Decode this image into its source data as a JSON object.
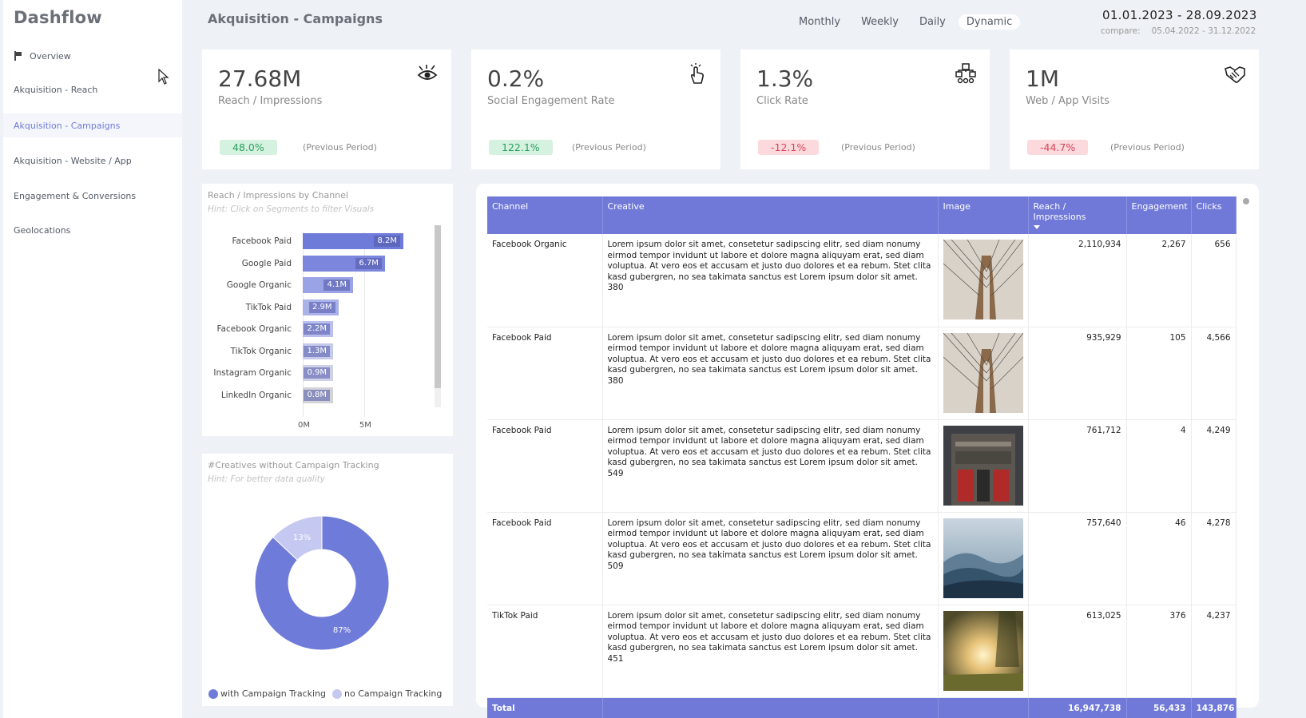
{
  "sidebar": {
    "brand": "Dashflow",
    "items": [
      {
        "label": "Overview",
        "icon": "flag-icon"
      },
      {
        "label": "Akquisition - Reach"
      },
      {
        "label": "Akquisition - Campaigns",
        "active": true
      },
      {
        "label": "Akquisition - Website / App"
      },
      {
        "label": "Engagement & Conversions"
      },
      {
        "label": "Geolocations"
      }
    ]
  },
  "header": {
    "title": "Akquisition - Campaigns",
    "tabs": [
      "Monthly",
      "Weekly",
      "Daily",
      "Dynamic"
    ],
    "active_tab": "Dynamic",
    "date_range": "01.01.2023 - 28.09.2023",
    "compare_label": "compare:",
    "compare_range": "05.04.2022 - 31.12.2022"
  },
  "kpis": [
    {
      "value": "27.68M",
      "label": "Reach / Impressions",
      "change": "48.0%",
      "trend": "positive",
      "prev": "(Previous Period)",
      "icon": "eye-icon"
    },
    {
      "value": "0.2%",
      "label": "Social Engagement Rate",
      "change": "122.1%",
      "trend": "positive",
      "prev": "(Previous Period)",
      "icon": "hand-click-icon"
    },
    {
      "value": "1.3%",
      "label": "Click Rate",
      "change": "-12.1%",
      "trend": "negative",
      "prev": "(Previous Period)",
      "icon": "network-icon"
    },
    {
      "value": "1M",
      "label": "Web / App Visits",
      "change": "-44.7%",
      "trend": "negative",
      "prev": "(Previous Period)",
      "icon": "handshake-icon"
    }
  ],
  "bar_panel": {
    "title": "Reach / Impressions by Channel",
    "hint": "Hint: Click on Segments to filter Visuals"
  },
  "donut_panel": {
    "title": "#Creatives without Campaign Tracking",
    "hint": "Hint: For better data quality"
  },
  "chart_data": [
    {
      "type": "bar",
      "orientation": "horizontal",
      "categories": [
        "Facebook Paid",
        "Google Paid",
        "Google Organic",
        "TikTok Paid",
        "Facebook Organic",
        "TikTok Organic",
        "Instagram Organic",
        "LinkedIn Organic"
      ],
      "values": [
        8.2,
        6.7,
        4.1,
        2.9,
        2.2,
        1.3,
        0.9,
        0.8
      ],
      "data_labels": [
        "8.2M",
        "6.7M",
        "4.1M",
        "2.9M",
        "2.2M",
        "1.3M",
        "0.9M",
        "0.8M"
      ],
      "x_ticks": [
        "0M",
        "5M"
      ],
      "xlim": [
        0,
        8.2
      ],
      "colors": [
        "#6f7bd8",
        "#7b86dc",
        "#9aa3e6",
        "#aab2ea",
        "#b9bfee",
        "#c5c9ea",
        "#cfd1e8",
        "#d3d3d8"
      ]
    },
    {
      "type": "pie",
      "donut": true,
      "labels": [
        "with Campaign Tracking",
        "no Campaign Tracking"
      ],
      "values": [
        87,
        13
      ],
      "data_labels": [
        "87%",
        "13%"
      ],
      "colors": [
        "#6f7bd8",
        "#c5c8f0"
      ],
      "legend": "bottom-left"
    }
  ],
  "table": {
    "columns": [
      "Channel",
      "Creative",
      "Image",
      "Reach / Impressions",
      "Engagement",
      "Clicks"
    ],
    "rows": [
      {
        "channel": "Facebook Organic",
        "creative": "Lorem ipsum dolor sit amet, consetetur sadipscing elitr, sed diam nonumy eirmod tempor invidunt ut labore et dolore magna aliquyam erat, sed diam voluptua. At vero eos et accusam et justo duo dolores et ea rebum. Stet clita kasd gubergren, no sea takimata sanctus est Lorem ipsum dolor sit amet. 380",
        "image": "bridge",
        "reach": "2,110,934",
        "engagement": "2,267",
        "clicks": "656"
      },
      {
        "channel": "Facebook Paid",
        "creative": "Lorem ipsum dolor sit amet, consetetur sadipscing elitr, sed diam nonumy eirmod tempor invidunt ut labore et dolore magna aliquyam erat, sed diam voluptua. At vero eos et accusam et justo duo dolores et ea rebum. Stet clita kasd gubergren, no sea takimata sanctus est Lorem ipsum dolor sit amet. 380",
        "image": "bridge",
        "reach": "935,929",
        "engagement": "105",
        "clicks": "4,566"
      },
      {
        "channel": "Facebook Paid",
        "creative": "Lorem ipsum dolor sit amet, consetetur sadipscing elitr, sed diam nonumy eirmod tempor invidunt ut labore et dolore magna aliquyam erat, sed diam voluptua. At vero eos et accusam et justo duo dolores et ea rebum. Stet clita kasd gubergren, no sea takimata sanctus est Lorem ipsum dolor sit amet. 549",
        "image": "firehouse",
        "reach": "761,712",
        "engagement": "4",
        "clicks": "4,249"
      },
      {
        "channel": "Facebook Paid",
        "creative": "Lorem ipsum dolor sit amet, consetetur sadipscing elitr, sed diam nonumy eirmod tempor invidunt ut labore et dolore magna aliquyam erat, sed diam voluptua. At vero eos et accusam et justo duo dolores et ea rebum. Stet clita kasd gubergren, no sea takimata sanctus est Lorem ipsum dolor sit amet. 509",
        "image": "mountains",
        "reach": "757,640",
        "engagement": "46",
        "clicks": "4,278"
      },
      {
        "channel": "TikTok Paid",
        "creative": "Lorem ipsum dolor sit amet, consetetur sadipscing elitr, sed diam nonumy eirmod tempor invidunt ut labore et dolore magna aliquyam erat, sed diam voluptua. At vero eos et accusam et justo duo dolores et ea rebum. Stet clita kasd gubergren, no sea takimata sanctus est Lorem ipsum dolor sit amet. 451",
        "image": "sunset",
        "reach": "613,025",
        "engagement": "376",
        "clicks": "4,237"
      }
    ],
    "total": {
      "label": "Total",
      "reach": "16,947,738",
      "engagement": "56,433",
      "clicks": "143,876"
    }
  }
}
